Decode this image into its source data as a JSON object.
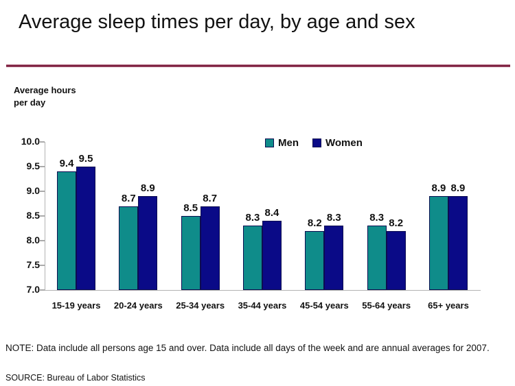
{
  "title": "Average sleep times per day, by age and sex",
  "title_rule_color": "#7a1f3e",
  "axis_title": "Average hours\nper day",
  "note": "NOTE: Data include all persons age 15 and over. Data include all days of the week and are annual averages for 2007.",
  "source": "SOURCE: Bureau of Labor Statistics",
  "colors": {
    "men_bar": "#0f8c8a",
    "women_bar": "#0a0a87",
    "bar_border": "#0c0c50",
    "axis_gray": "#b3b3b3",
    "text": "#111111"
  },
  "chart_data": {
    "type": "bar",
    "title": "Average sleep times per day, by age and sex",
    "ylabel": "Average hours per day",
    "xlabel": "",
    "categories": [
      "15-19 years",
      "20-24 years",
      "25-34 years",
      "35-44 years",
      "45-54 years",
      "55-64 years",
      "65+ years"
    ],
    "series": [
      {
        "name": "Men",
        "color": "#0f8c8a",
        "values": [
          9.4,
          8.7,
          8.5,
          8.3,
          8.2,
          8.3,
          8.9
        ]
      },
      {
        "name": "Women",
        "color": "#0a0a87",
        "values": [
          9.5,
          8.9,
          8.7,
          8.4,
          8.3,
          8.2,
          8.9
        ]
      }
    ],
    "ylim": [
      7.0,
      10.0
    ],
    "ytick_step": 0.5,
    "yticks": [
      "10.0",
      "9.5",
      "9.0",
      "8.5",
      "8.0",
      "7.5",
      "7.0"
    ],
    "grid": false,
    "bar_labels": true,
    "legend_position": "top-center"
  }
}
